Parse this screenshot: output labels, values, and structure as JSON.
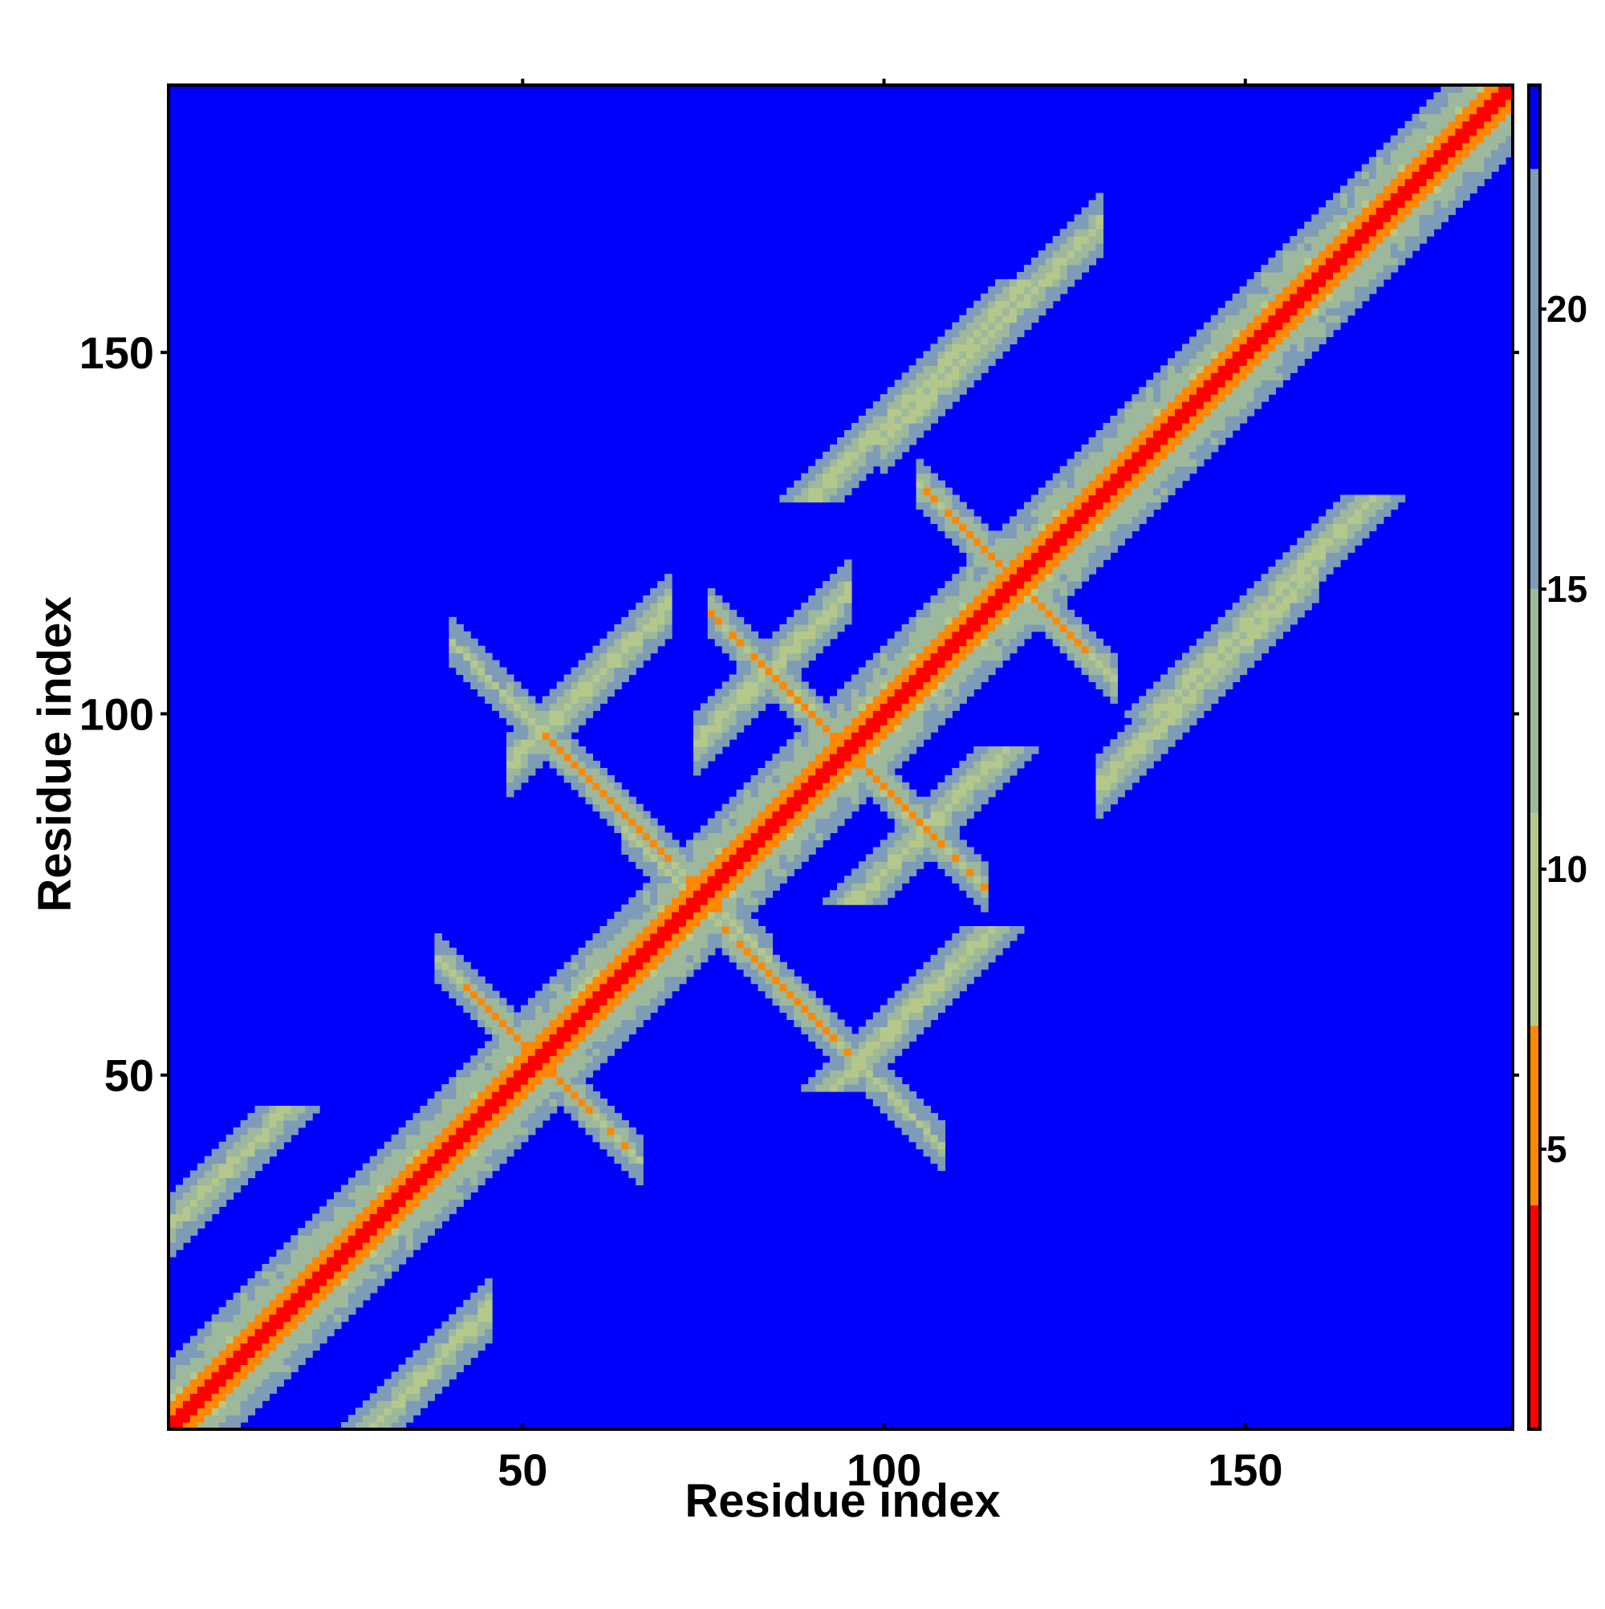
{
  "chart_data": {
    "type": "heatmap",
    "title": "",
    "xlabel": "Residue index",
    "ylabel": "Residue index",
    "n_residues": 187,
    "xlim": [
      1,
      187
    ],
    "ylim": [
      1,
      187
    ],
    "x_ticks": [
      50,
      100,
      150
    ],
    "x_tick_labels": [
      "50",
      "100",
      "150"
    ],
    "y_ticks": [
      50,
      100,
      150
    ],
    "y_tick_labels": [
      "50",
      "100",
      "150"
    ],
    "grid": false,
    "colorbar": {
      "min": 0,
      "max": 24,
      "ticks": [
        5,
        10,
        15,
        20
      ],
      "tick_labels": [
        "5",
        "10",
        "15",
        "20"
      ],
      "placement": "right",
      "color_bands": [
        {
          "from": 0,
          "to": 4,
          "color": "#ff0000"
        },
        {
          "from": 4,
          "to": 7.2,
          "color": "#ff8800"
        },
        {
          "from": 7.2,
          "to": 11,
          "color": "#b4c88c"
        },
        {
          "from": 11,
          "to": 15,
          "color": "#9eb89c"
        },
        {
          "from": 15,
          "to": 22.5,
          "color": "#7e9cb8"
        },
        {
          "from": 22.5,
          "to": 24,
          "color": "#0000ff"
        }
      ]
    },
    "background_color": "#0000ff",
    "value_semantics": "pairwise residue distance (contact map); low = red, high/none = blue",
    "structure": {
      "main_diagonal": {
        "from": 1,
        "to": 187
      },
      "antidiagonal_bands": [
        {
          "center_i": 52,
          "center_j": 52,
          "length_i": 14
        },
        {
          "center_i": 62,
          "center_j": 88,
          "length_i": 22
        },
        {
          "center_i": 86,
          "center_j": 62,
          "length_i": 22
        },
        {
          "center_i": 88,
          "center_j": 102,
          "length_i": 12
        },
        {
          "center_i": 102,
          "center_j": 88,
          "length_i": 12
        },
        {
          "center_i": 115,
          "center_j": 122,
          "length_i": 10
        },
        {
          "center_i": 122,
          "center_j": 115,
          "length_i": 10
        }
      ],
      "parallel_bands": [
        {
          "i_start": 20,
          "i_end": 45,
          "offset": -28
        },
        {
          "i_start": 48,
          "i_end": 70,
          "offset": 45
        },
        {
          "i_start": 74,
          "i_end": 95,
          "offset": 22
        },
        {
          "i_start": 100,
          "i_end": 130,
          "offset": 38
        },
        {
          "i_start": 130,
          "i_end": 160,
          "offset": -40
        }
      ]
    }
  }
}
